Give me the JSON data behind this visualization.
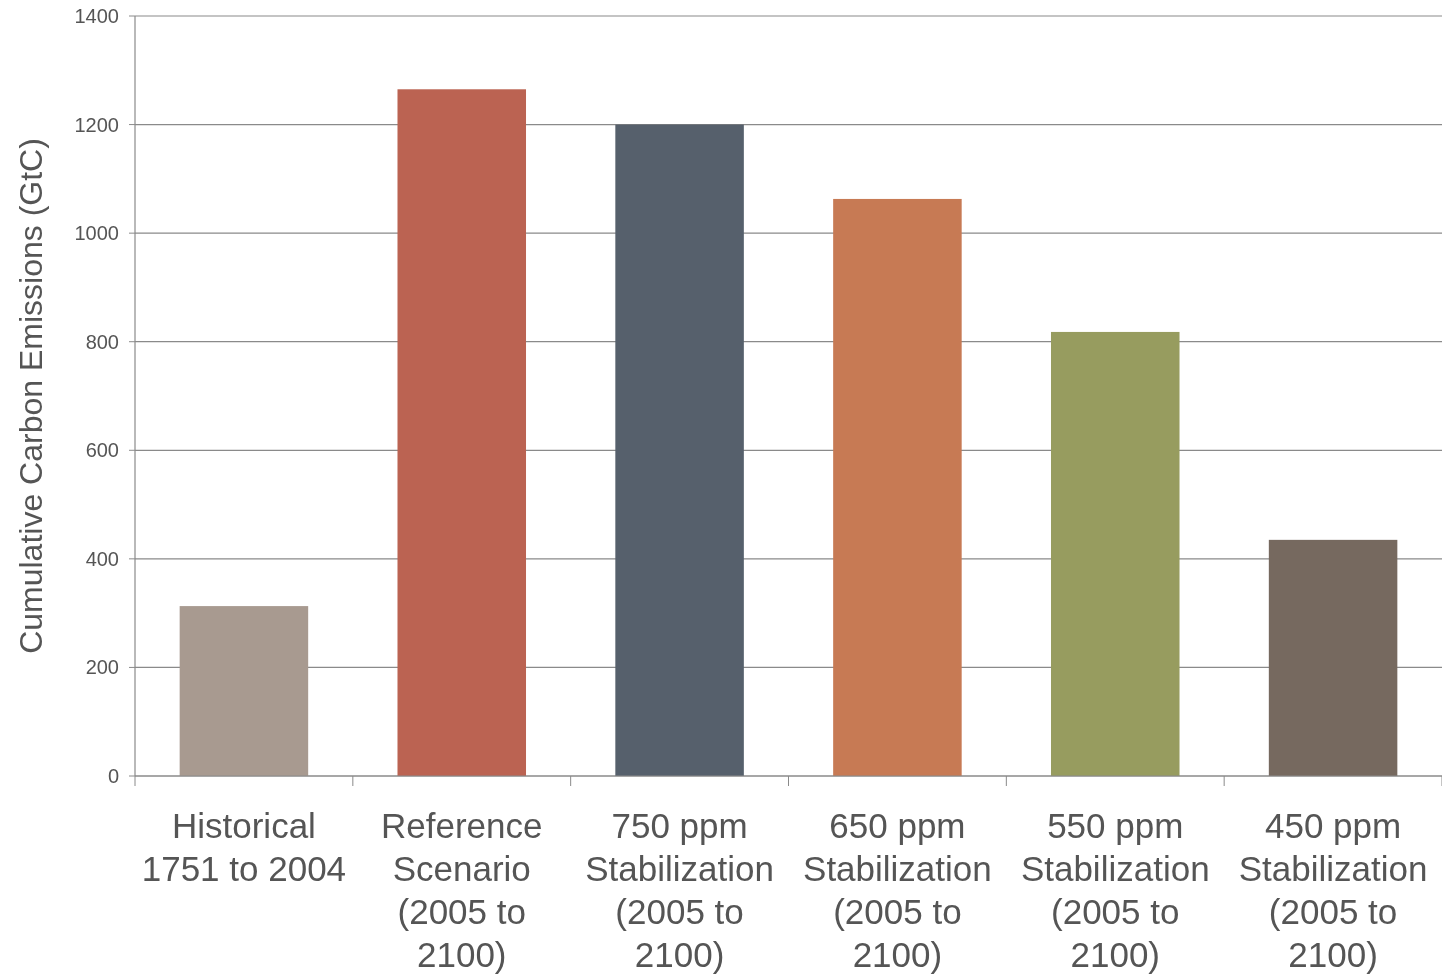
{
  "chart_data": {
    "type": "bar",
    "ylabel": "Cumulative Carbon Emissions (GtC)",
    "categories": [
      "Historical 1751 to 2004",
      "Reference Scenario (2005 to 2100)",
      "750 ppm Stabilization (2005 to 2100)",
      "650 ppm Stabilization (2005 to 2100)",
      "550 ppm Stabilization (2005 to 2100)",
      "450 ppm Stabilization (2005 to 2100)"
    ],
    "values": [
      313,
      1265,
      1200,
      1063,
      818,
      435
    ],
    "colors": [
      "#a89a90",
      "#bb6352",
      "#56606c",
      "#c77a54",
      "#979c5f",
      "#76695f"
    ],
    "ylim": [
      0,
      1400
    ],
    "yticks": [
      0,
      200,
      400,
      600,
      800,
      1000,
      1200,
      1400
    ],
    "grid": "y"
  }
}
